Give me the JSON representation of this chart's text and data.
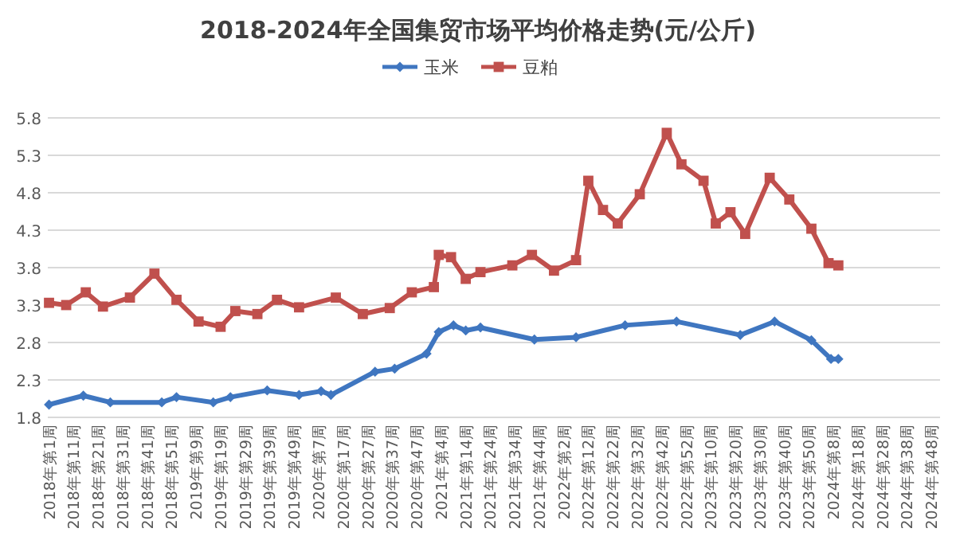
{
  "chart_data": {
    "type": "line",
    "title": "2018-2024年全国集贸市场平均价格走势(元/公斤)",
    "legend": "top",
    "grid": "y",
    "line_style": "solid",
    "ylim": [
      1.8,
      5.8
    ],
    "yticks": [
      1.8,
      2.3,
      2.8,
      3.3,
      3.8,
      4.3,
      4.8,
      5.3,
      5.8
    ],
    "categories": [
      "2018年第1周",
      null,
      null,
      null,
      null,
      null,
      null,
      null,
      null,
      null,
      "2018年第11周",
      null,
      null,
      null,
      null,
      null,
      null,
      null,
      null,
      null,
      "2018年第21周",
      null,
      null,
      null,
      null,
      null,
      null,
      null,
      null,
      null,
      "2018年第31周",
      null,
      null,
      null,
      null,
      null,
      null,
      null,
      null,
      null,
      "2018年第41周",
      null,
      null,
      null,
      null,
      null,
      null,
      null,
      null,
      null,
      "2018年第51周",
      null,
      null,
      null,
      null,
      null,
      null,
      null,
      null,
      null,
      "2019年第9周",
      null,
      null,
      null,
      null,
      null,
      null,
      null,
      null,
      null,
      "2019年第19周",
      null,
      null,
      null,
      null,
      null,
      null,
      null,
      null,
      null,
      "2019年第29周",
      null,
      null,
      null,
      null,
      null,
      null,
      null,
      null,
      null,
      "2019年第39周",
      null,
      null,
      null,
      null,
      null,
      null,
      null,
      null,
      null,
      "2019年第49周",
      null,
      null,
      null,
      null,
      null,
      null,
      null,
      null,
      null,
      "2020年第7周",
      null,
      null,
      null,
      null,
      null,
      null,
      null,
      null,
      null,
      "2020年第17周",
      null,
      null,
      null,
      null,
      null,
      null,
      null,
      null,
      null,
      "2020年第27周",
      null,
      null,
      null,
      null,
      null,
      null,
      null,
      null,
      null,
      "2020年第37周",
      null,
      null,
      null,
      null,
      null,
      null,
      null,
      null,
      null,
      "2020年第47周",
      null,
      null,
      null,
      null,
      null,
      null,
      null,
      null,
      null,
      "2021年第4周",
      null,
      null,
      null,
      null,
      null,
      null,
      null,
      null,
      null,
      "2021年第14周",
      null,
      null,
      null,
      null,
      null,
      null,
      null,
      null,
      null,
      "2021年第24周",
      null,
      null,
      null,
      null,
      null,
      null,
      null,
      null,
      null,
      "2021年第34周",
      null,
      null,
      null,
      null,
      null,
      null,
      null,
      null,
      null,
      "2021年第44周",
      null,
      null,
      null,
      null,
      null,
      null,
      null,
      null,
      null,
      "2022年第2周",
      null,
      null,
      null,
      null,
      null,
      null,
      null,
      null,
      null,
      "2022年第12周",
      null,
      null,
      null,
      null,
      null,
      null,
      null,
      null,
      null,
      "2022年第22周",
      null,
      null,
      null,
      null,
      null,
      null,
      null,
      null,
      null,
      "2022年第32周",
      null,
      null,
      null,
      null,
      null,
      null,
      null,
      null,
      null,
      "2022年第42周",
      null,
      null,
      null,
      null,
      null,
      null,
      null,
      null,
      null,
      "2022年第52周",
      null,
      null,
      null,
      null,
      null,
      null,
      null,
      null,
      null,
      "2023年第10周",
      null,
      null,
      null,
      null,
      null,
      null,
      null,
      null,
      null,
      "2023年第20周",
      null,
      null,
      null,
      null,
      null,
      null,
      null,
      null,
      null,
      "2023年第30周",
      null,
      null,
      null,
      null,
      null,
      null,
      null,
      null,
      null,
      "2023年第40周",
      null,
      null,
      null,
      null,
      null,
      null,
      null,
      null,
      null,
      "2023年第50周",
      null,
      null,
      null,
      null,
      null,
      null,
      null,
      null,
      null,
      "2024年第8周",
      null,
      null,
      null,
      null,
      null,
      null,
      null,
      null,
      null,
      "2024年第18周",
      null,
      null,
      null,
      null,
      null,
      null,
      null,
      null,
      null,
      "2024年第28周",
      null,
      null,
      null,
      null,
      null,
      null,
      null,
      null,
      null,
      "2024年第38周",
      null,
      null,
      null,
      null,
      null,
      null,
      null,
      null,
      null,
      "2024年第48周",
      null,
      null,
      null
    ],
    "series": [
      {
        "name": "玉米",
        "color": "#3f76c0",
        "marker": "diamond",
        "values": [
          1.97,
          null,
          null,
          null,
          null,
          null,
          null,
          null,
          null,
          null,
          null,
          null,
          null,
          null,
          2.09,
          null,
          null,
          null,
          null,
          null,
          null,
          null,
          null,
          null,
          null,
          2.0,
          null,
          null,
          null,
          null,
          null,
          null,
          null,
          null,
          null,
          null,
          null,
          null,
          null,
          null,
          null,
          null,
          null,
          null,
          null,
          null,
          2.0,
          null,
          null,
          null,
          null,
          null,
          2.07,
          null,
          null,
          null,
          null,
          null,
          null,
          null,
          null,
          null,
          null,
          null,
          null,
          null,
          null,
          2.0,
          null,
          null,
          null,
          null,
          null,
          null,
          2.07,
          null,
          null,
          null,
          null,
          null,
          null,
          null,
          null,
          null,
          null,
          null,
          null,
          null,
          null,
          2.16,
          null,
          null,
          null,
          null,
          null,
          null,
          null,
          null,
          null,
          null,
          null,
          null,
          2.1,
          null,
          null,
          null,
          null,
          null,
          null,
          null,
          null,
          2.15,
          null,
          null,
          null,
          2.1,
          null,
          null,
          null,
          null,
          null,
          null,
          null,
          null,
          null,
          null,
          null,
          null,
          null,
          null,
          null,
          null,
          null,
          2.41,
          null,
          null,
          null,
          null,
          null,
          null,
          null,
          2.45,
          null,
          null,
          null,
          null,
          null,
          null,
          null,
          null,
          null,
          null,
          null,
          null,
          2.65,
          null,
          null,
          null,
          null,
          2.94,
          null,
          null,
          null,
          null,
          null,
          3.03,
          null,
          null,
          null,
          null,
          2.96,
          null,
          null,
          null,
          null,
          null,
          3.0,
          null,
          null,
          null,
          null,
          null,
          null,
          null,
          null,
          null,
          null,
          null,
          null,
          null,
          null,
          null,
          null,
          null,
          null,
          null,
          null,
          null,
          2.84,
          null,
          null,
          null,
          null,
          null,
          null,
          null,
          null,
          null,
          null,
          null,
          null,
          null,
          null,
          null,
          null,
          2.87,
          null,
          null,
          null,
          null,
          null,
          null,
          null,
          null,
          null,
          null,
          null,
          null,
          null,
          null,
          null,
          null,
          null,
          null,
          null,
          3.03,
          null,
          null,
          null,
          null,
          null,
          null,
          null,
          null,
          null,
          null,
          null,
          null,
          null,
          null,
          null,
          null,
          null,
          null,
          null,
          null,
          3.08,
          null,
          null,
          null,
          null,
          null,
          null,
          null,
          null,
          null,
          null,
          null,
          null,
          null,
          null,
          null,
          null,
          null,
          null,
          null,
          null,
          null,
          null,
          null,
          null,
          null,
          2.9,
          null,
          null,
          null,
          null,
          null,
          null,
          null,
          null,
          null,
          null,
          null,
          null,
          null,
          3.08,
          null,
          null,
          null,
          null,
          null,
          null,
          null,
          null,
          null,
          null,
          null,
          null,
          null,
          null,
          2.83,
          null,
          null,
          null,
          null,
          null,
          null,
          null,
          2.58,
          null,
          null,
          2.58,
          null,
          null,
          null,
          null,
          null,
          null,
          null,
          null,
          null,
          null,
          null,
          null,
          null,
          null,
          null,
          null,
          null,
          null,
          null,
          null,
          null,
          null,
          null,
          null,
          null,
          null,
          null,
          null,
          null,
          null,
          null,
          null,
          null,
          null,
          null,
          null,
          null,
          null,
          null,
          null,
          null
        ]
      },
      {
        "name": "豆粕",
        "color": "#c0504d",
        "marker": "square",
        "values": [
          3.33,
          null,
          null,
          null,
          null,
          null,
          null,
          3.3,
          null,
          null,
          null,
          null,
          null,
          null,
          null,
          3.47,
          null,
          null,
          null,
          null,
          null,
          null,
          3.28,
          null,
          null,
          null,
          null,
          null,
          null,
          null,
          null,
          null,
          null,
          3.4,
          null,
          null,
          null,
          null,
          null,
          null,
          null,
          null,
          null,
          3.72,
          null,
          null,
          null,
          null,
          null,
          null,
          null,
          null,
          3.37,
          null,
          null,
          null,
          null,
          null,
          null,
          null,
          null,
          3.08,
          null,
          null,
          null,
          null,
          null,
          null,
          null,
          null,
          3.01,
          null,
          null,
          null,
          null,
          null,
          3.22,
          null,
          null,
          null,
          null,
          null,
          null,
          null,
          null,
          3.18,
          null,
          null,
          null,
          null,
          null,
          null,
          null,
          3.37,
          null,
          null,
          null,
          null,
          null,
          null,
          null,
          null,
          3.27,
          null,
          null,
          null,
          null,
          null,
          null,
          null,
          null,
          null,
          null,
          null,
          null,
          null,
          null,
          3.4,
          null,
          null,
          null,
          null,
          null,
          null,
          null,
          null,
          null,
          null,
          3.18,
          null,
          null,
          null,
          null,
          null,
          null,
          null,
          null,
          null,
          null,
          3.26,
          null,
          null,
          null,
          null,
          null,
          null,
          null,
          null,
          3.47,
          null,
          null,
          null,
          null,
          null,
          null,
          null,
          null,
          3.54,
          null,
          3.97,
          null,
          null,
          null,
          null,
          3.94,
          null,
          null,
          null,
          null,
          null,
          3.65,
          null,
          null,
          null,
          null,
          null,
          3.74,
          null,
          null,
          null,
          null,
          null,
          null,
          null,
          null,
          null,
          null,
          null,
          null,
          3.83,
          null,
          null,
          null,
          null,
          null,
          null,
          null,
          3.97,
          null,
          null,
          null,
          null,
          null,
          null,
          null,
          null,
          3.76,
          null,
          null,
          null,
          null,
          null,
          null,
          null,
          null,
          3.9,
          null,
          null,
          null,
          null,
          4.96,
          null,
          null,
          null,
          null,
          null,
          4.57,
          null,
          null,
          null,
          null,
          null,
          4.39,
          null,
          null,
          null,
          null,
          null,
          null,
          null,
          null,
          4.78,
          null,
          null,
          null,
          null,
          null,
          null,
          null,
          null,
          null,
          null,
          5.6,
          null,
          null,
          null,
          null,
          null,
          5.18,
          null,
          null,
          null,
          null,
          null,
          null,
          null,
          null,
          4.96,
          null,
          null,
          null,
          null,
          4.39,
          null,
          null,
          null,
          null,
          null,
          4.54,
          null,
          null,
          null,
          null,
          null,
          4.25,
          null,
          null,
          null,
          null,
          null,
          null,
          null,
          null,
          null,
          5.0,
          null,
          null,
          null,
          null,
          null,
          null,
          null,
          4.71,
          null,
          null,
          null,
          null,
          null,
          null,
          null,
          null,
          4.32,
          null,
          null,
          null,
          null,
          null,
          null,
          3.86,
          null,
          null,
          null,
          3.83,
          null,
          null,
          null,
          null,
          null,
          null,
          null,
          null,
          null,
          null,
          null,
          null,
          null,
          null,
          null,
          null,
          null,
          null,
          null,
          null,
          null,
          null,
          null,
          null,
          null,
          null,
          null,
          null,
          null,
          null,
          null,
          null,
          null,
          null,
          null,
          null,
          null,
          null,
          null,
          null,
          null
        ]
      }
    ]
  }
}
